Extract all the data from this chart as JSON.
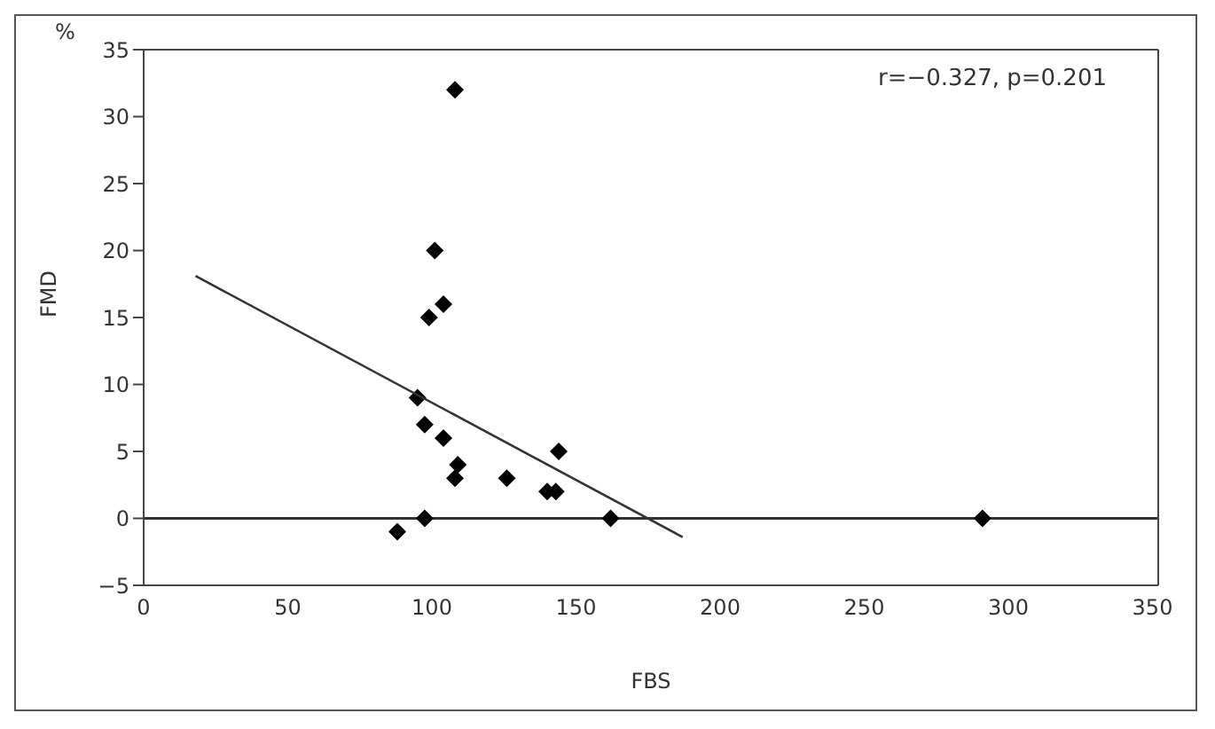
{
  "chart_data": {
    "type": "scatter",
    "xlabel": "FBS",
    "ylabel": "FMD",
    "annotations": [
      "%",
      "r=−0.327, p=0.201"
    ],
    "xlim": [
      0,
      352
    ],
    "xticks": [
      0,
      50,
      100,
      150,
      200,
      250,
      300,
      350
    ],
    "ylim": [
      -5,
      35
    ],
    "yticks": [
      -5,
      0,
      5,
      10,
      15,
      20,
      25,
      30,
      35
    ],
    "marker": "diamond",
    "ref_lines": [
      {
        "axis": "y",
        "value": 0,
        "color": "#333333"
      }
    ],
    "series": [
      {
        "color": "#000000",
        "x": [
          108,
          101,
          104,
          99,
          95,
          97.5,
          104,
          109,
          108,
          126,
          140,
          143,
          144,
          162,
          97.5,
          88,
          291
        ],
        "values": [
          32,
          20,
          16,
          15,
          9,
          7,
          6,
          4,
          3,
          3,
          2,
          2,
          5,
          0,
          0,
          -1,
          0
        ]
      },
      {
        "type": "line",
        "color": "#333333",
        "marker": "none",
        "line_style": "solid",
        "x": [
          18,
          187
        ],
        "values": [
          18.1,
          -1.4
        ]
      }
    ]
  }
}
